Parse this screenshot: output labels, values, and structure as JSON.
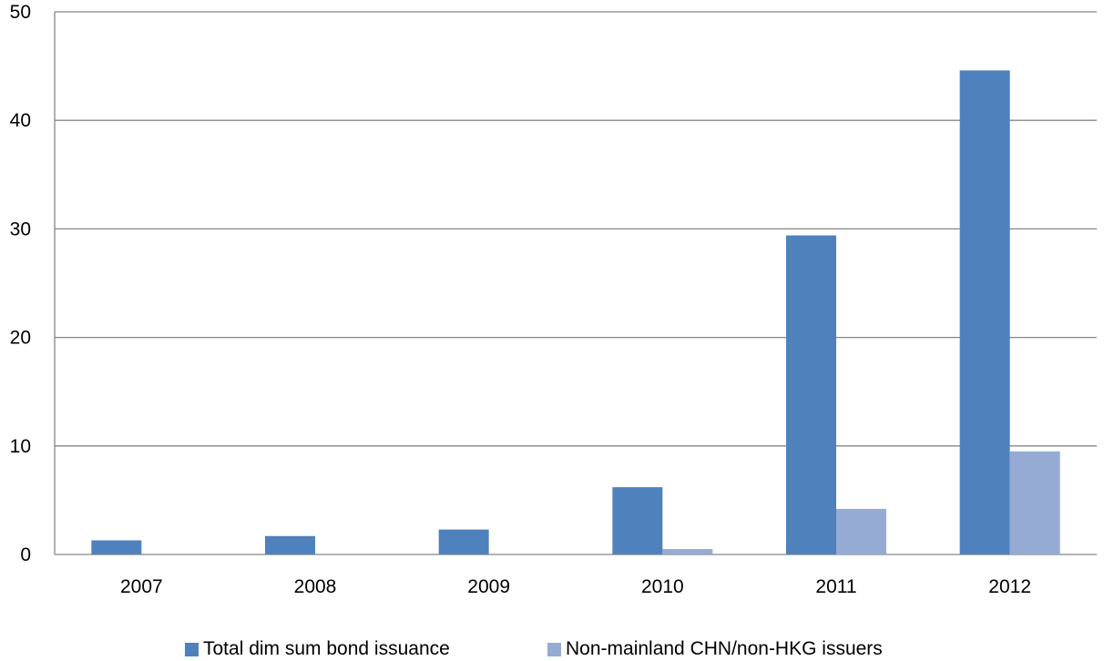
{
  "chart_data": {
    "type": "bar",
    "title": "",
    "xlabel": "",
    "ylabel": "",
    "categories": [
      "2007",
      "2008",
      "2009",
      "2010",
      "2011",
      "2012"
    ],
    "series": [
      {
        "name": "Total dim sum bond issuance",
        "color": "#4F81BD",
        "values": [
          1.3,
          1.7,
          2.3,
          6.2,
          29.4,
          44.6
        ]
      },
      {
        "name": "Non-mainland CHN/non-HKG issuers",
        "color": "#95ABD3",
        "values": [
          0,
          0,
          0,
          0.5,
          4.2,
          9.5
        ]
      }
    ],
    "ylim": [
      0,
      50
    ],
    "yticks": [
      "0",
      "10",
      "20",
      "30",
      "40",
      "50"
    ],
    "grid": true,
    "legend_position": "bottom"
  }
}
